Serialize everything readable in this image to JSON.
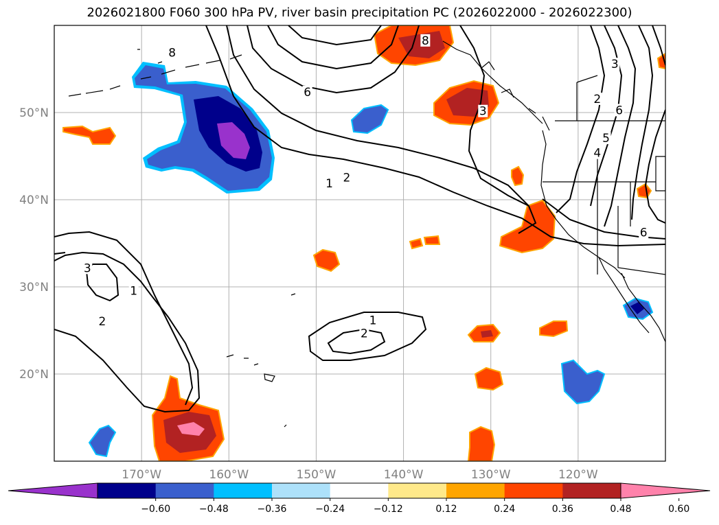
{
  "title": "2026021800 F060 300 hPa PV, river basin precipitation PC (2026022000 - 2026022300)",
  "map": {
    "lon_range": [
      -180,
      -110
    ],
    "lat_range": [
      10,
      60
    ],
    "lat_ticks": [
      {
        "value": 20,
        "label": "20°N"
      },
      {
        "value": 30,
        "label": "30°N"
      },
      {
        "value": 40,
        "label": "40°N"
      },
      {
        "value": 50,
        "label": "50°N"
      }
    ],
    "lon_ticks": [
      {
        "value": -170,
        "label": "170°W"
      },
      {
        "value": -160,
        "label": "160°W"
      },
      {
        "value": -150,
        "label": "150°W"
      },
      {
        "value": -140,
        "label": "140°W"
      },
      {
        "value": -130,
        "label": "130°W"
      },
      {
        "value": -120,
        "label": "120°W"
      }
    ],
    "grid": true
  },
  "colorbar": {
    "extend": "both",
    "levels": [
      -0.72,
      -0.6,
      -0.48,
      -0.36,
      -0.24,
      -0.12,
      0.12,
      0.24,
      0.36,
      0.48,
      0.6,
      0.72
    ],
    "colors": [
      "#9932CC",
      "#00008B",
      "#3A5FCD",
      "#00BFFF",
      "#ADE1FA",
      "#FFFFFF",
      "#FFE98A",
      "#FFA500",
      "#FF4500",
      "#B22222",
      "#FF82AB"
    ],
    "tick_labels": [
      "−0.60",
      "−0.48",
      "−0.36",
      "−0.24",
      "−0.12",
      "0.12",
      "0.24",
      "0.36",
      "0.48",
      "0.60"
    ]
  },
  "pv_contour_labels": [
    {
      "text": "6",
      "lon": -151,
      "lat": 52.3
    },
    {
      "text": "8",
      "lon": -166.5,
      "lat": 56.8
    },
    {
      "text": "2",
      "lon": -146.5,
      "lat": 42.5
    },
    {
      "text": "1",
      "lon": -148.5,
      "lat": 41.8
    },
    {
      "text": "1",
      "lon": -143.5,
      "lat": 26.1
    },
    {
      "text": "2",
      "lon": -144.5,
      "lat": 24.6
    },
    {
      "text": "3",
      "lon": -176.2,
      "lat": 32.1
    },
    {
      "text": "1",
      "lon": -170.9,
      "lat": 29.5
    },
    {
      "text": "2",
      "lon": -174.5,
      "lat": 26.0
    },
    {
      "text": "3",
      "lon": -115.8,
      "lat": 55.5
    },
    {
      "text": "2",
      "lon": -117.8,
      "lat": 51.5
    },
    {
      "text": "6",
      "lon": -115.3,
      "lat": 50.2
    },
    {
      "text": "5",
      "lon": -116.8,
      "lat": 47.0
    },
    {
      "text": "4",
      "lon": -117.8,
      "lat": 45.3
    },
    {
      "text": "6",
      "lon": -112.5,
      "lat": 36.2
    },
    {
      "text": "3",
      "lon": -130.9,
      "lat": 50.1
    },
    {
      "text": "8",
      "lon": -137.5,
      "lat": 58.2
    }
  ],
  "precip_pc_regions": [
    {
      "category": "negative",
      "min_value": -0.6,
      "lon": -160,
      "lat": 47,
      "description_ref": "strong"
    },
    {
      "category": "positive",
      "min_value": 0.48,
      "lon": -165.5,
      "lat": 14,
      "description_ref": "strong"
    },
    {
      "category": "positive",
      "min_value": 0.48,
      "lon": -131,
      "lat": 51,
      "description_ref": "strong"
    }
  ]
}
